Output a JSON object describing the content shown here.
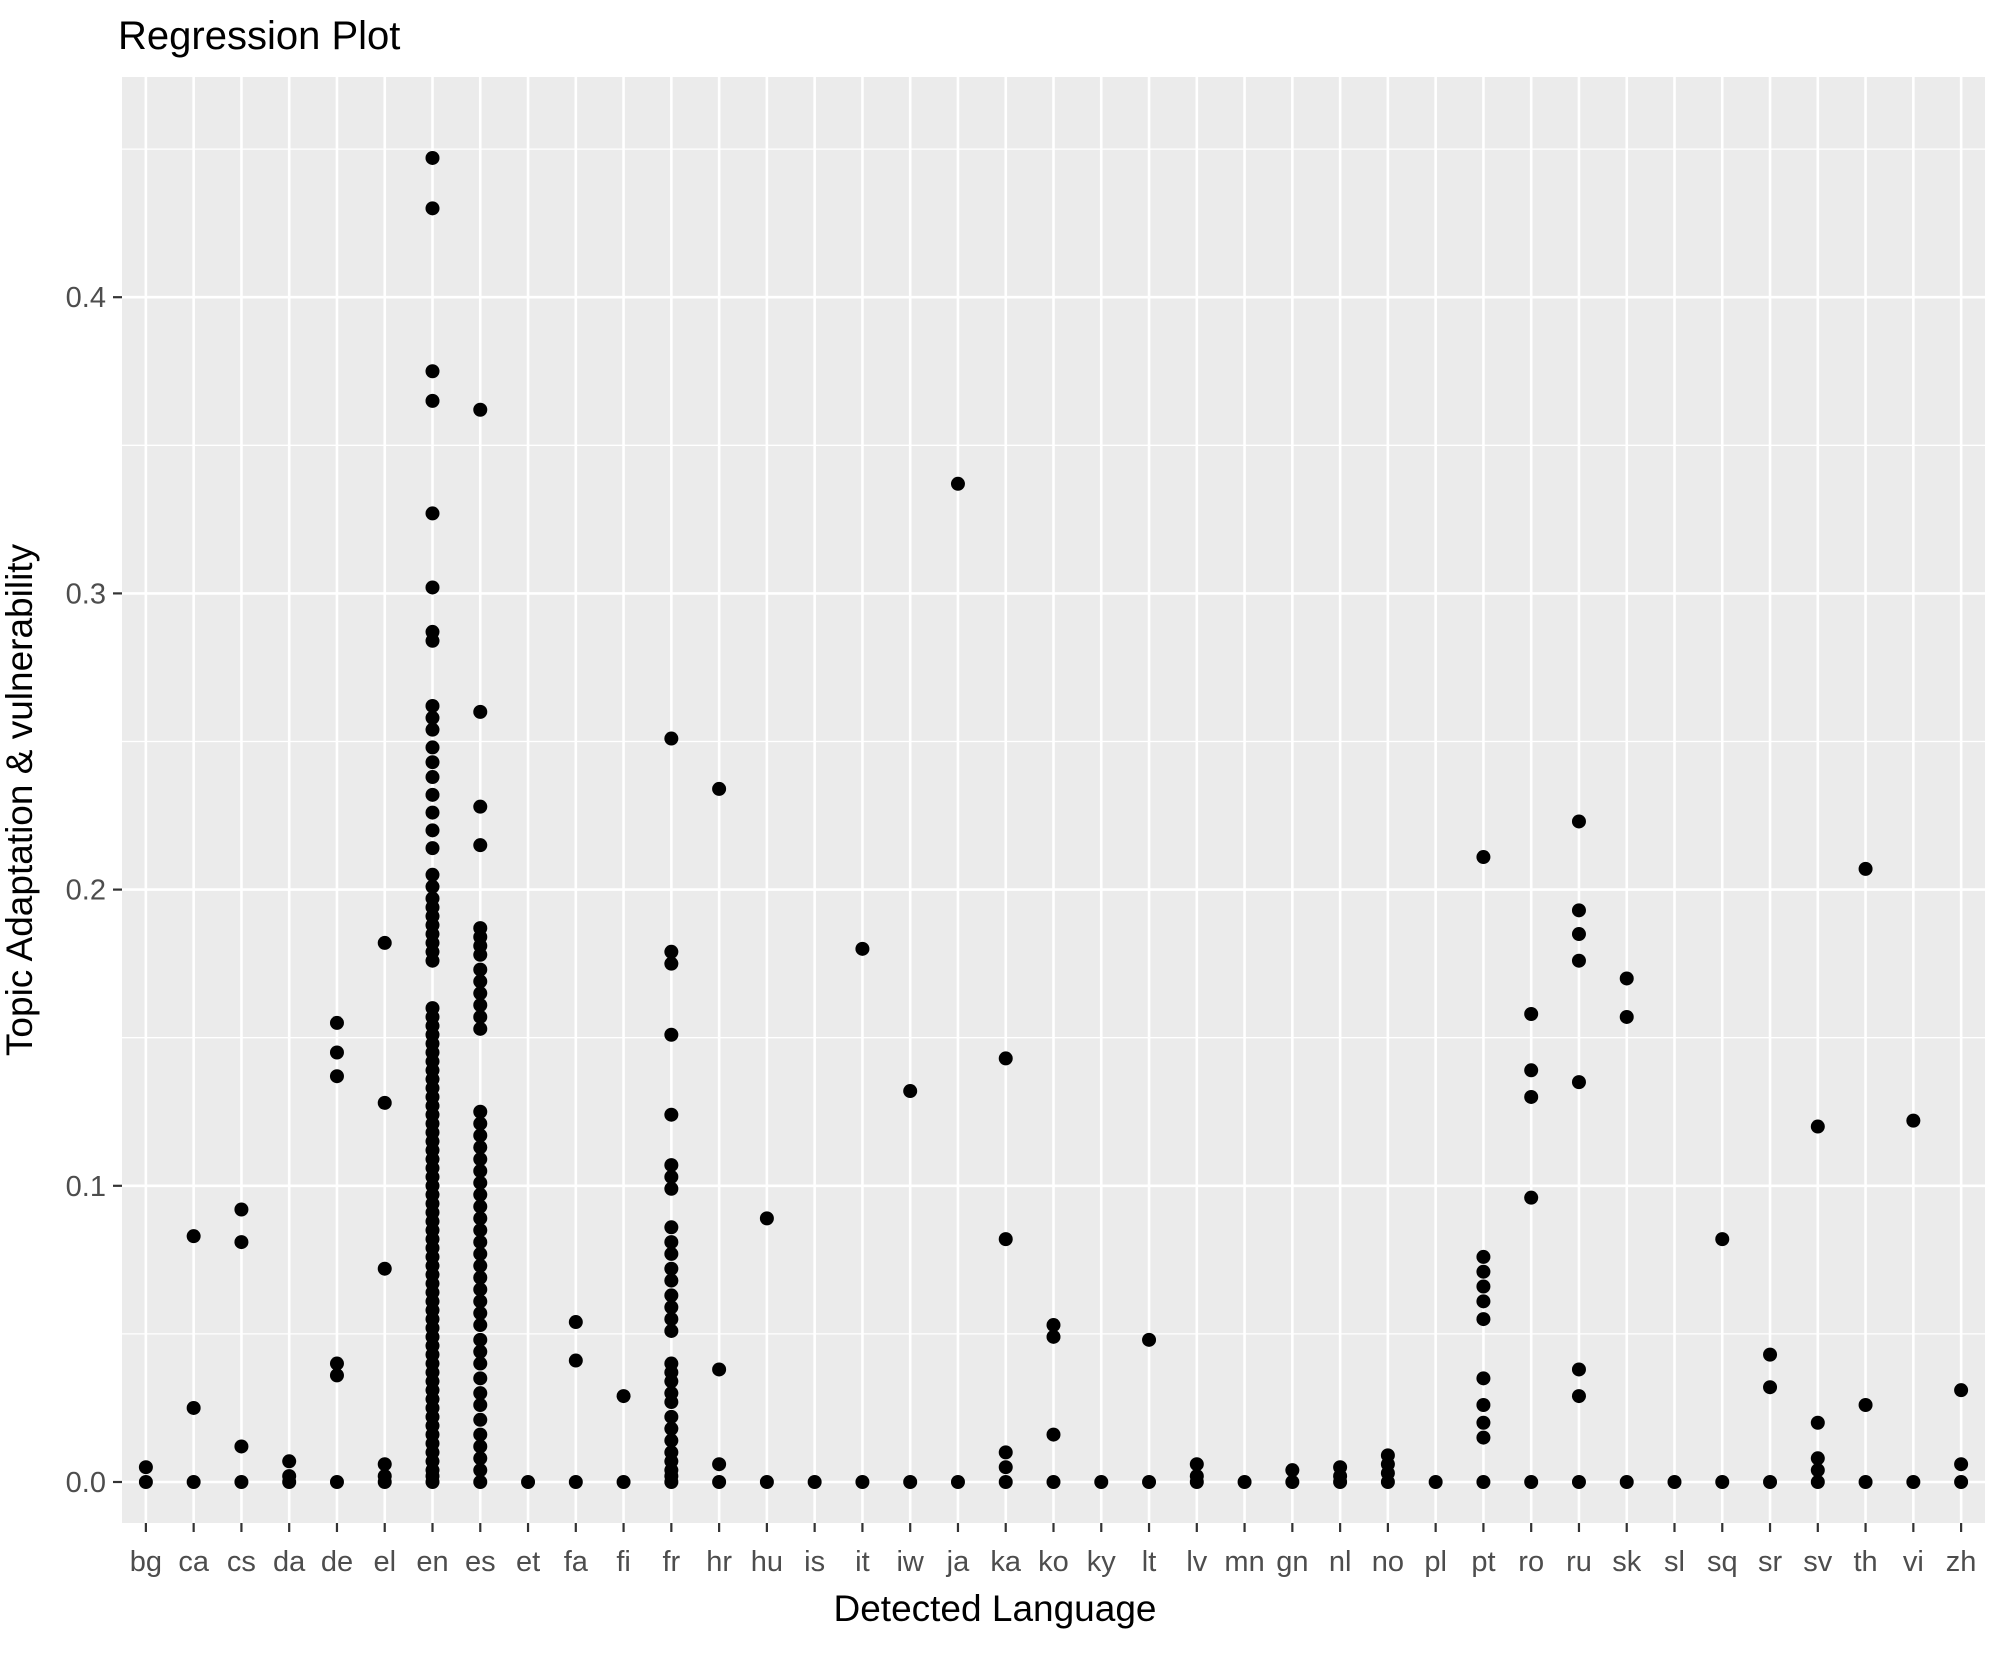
{
  "title": "Regression Plot",
  "chart_data": {
    "type": "scatter",
    "title": "Regression Plot",
    "xlabel": "Detected Language",
    "ylabel": "Topic Adaptation & vulnerability",
    "ylim": [
      -0.014,
      0.474
    ],
    "yticks": [
      0.0,
      0.1,
      0.2,
      0.3,
      0.4
    ],
    "ytick_labels": [
      "0.0",
      "0.1",
      "0.2",
      "0.3",
      "0.4"
    ],
    "grid": "on",
    "legend": "none",
    "panel_background": "#EBEBEB",
    "gridline_color": "#FFFFFF",
    "point_color": "#000000",
    "tick_label_color": "#4d4d4d",
    "categories": [
      "bg",
      "ca",
      "cs",
      "da",
      "de",
      "el",
      "en",
      "es",
      "et",
      "fa",
      "fi",
      "fr",
      "hr",
      "hu",
      "is",
      "it",
      "iw",
      "ja",
      "ka",
      "ko",
      "ky",
      "lt",
      "lv",
      "mn",
      "gn",
      "nl",
      "no",
      "pl",
      "pt",
      "ro",
      "ru",
      "sk",
      "sl",
      "sq",
      "sr",
      "sv",
      "th",
      "vi",
      "zh"
    ],
    "points": {
      "bg": [
        0.005,
        0.0
      ],
      "ca": [
        0.083,
        0.025,
        0.0
      ],
      "cs": [
        0.092,
        0.081,
        0.012,
        0.0
      ],
      "da": [
        0.007,
        0.002,
        0.0
      ],
      "de": [
        0.155,
        0.145,
        0.137,
        0.04,
        0.036,
        0.0
      ],
      "el": [
        0.182,
        0.128,
        0.072,
        0.006,
        0.002,
        0.0
      ],
      "en": [
        0.447,
        0.43,
        0.375,
        0.365,
        0.327,
        0.302,
        0.287,
        0.284,
        0.262,
        0.258,
        0.254,
        0.248,
        0.243,
        0.238,
        0.232,
        0.226,
        0.22,
        0.214,
        0.205,
        0.201,
        0.197,
        0.194,
        0.191,
        0.188,
        0.185,
        0.182,
        0.179,
        0.176,
        0.16,
        0.157,
        0.154,
        0.151,
        0.148,
        0.145,
        0.142,
        0.139,
        0.136,
        0.133,
        0.13,
        0.127,
        0.124,
        0.121,
        0.118,
        0.115,
        0.112,
        0.109,
        0.106,
        0.103,
        0.1,
        0.097,
        0.094,
        0.091,
        0.088,
        0.085,
        0.082,
        0.079,
        0.076,
        0.073,
        0.07,
        0.067,
        0.064,
        0.061,
        0.058,
        0.055,
        0.052,
        0.049,
        0.046,
        0.043,
        0.04,
        0.037,
        0.034,
        0.031,
        0.028,
        0.025,
        0.022,
        0.019,
        0.016,
        0.013,
        0.01,
        0.007,
        0.004,
        0.002,
        0.0
      ],
      "es": [
        0.362,
        0.26,
        0.228,
        0.215,
        0.187,
        0.184,
        0.181,
        0.178,
        0.173,
        0.169,
        0.165,
        0.161,
        0.157,
        0.153,
        0.125,
        0.121,
        0.117,
        0.113,
        0.109,
        0.105,
        0.101,
        0.097,
        0.093,
        0.089,
        0.085,
        0.081,
        0.077,
        0.073,
        0.069,
        0.065,
        0.061,
        0.057,
        0.053,
        0.048,
        0.044,
        0.04,
        0.035,
        0.03,
        0.026,
        0.021,
        0.016,
        0.012,
        0.008,
        0.004,
        0.0
      ],
      "et": [
        0.0
      ],
      "fa": [
        0.054,
        0.041,
        0.0
      ],
      "fi": [
        0.029,
        0.0
      ],
      "fr": [
        0.251,
        0.179,
        0.175,
        0.151,
        0.124,
        0.107,
        0.103,
        0.099,
        0.086,
        0.081,
        0.077,
        0.072,
        0.068,
        0.063,
        0.059,
        0.055,
        0.051,
        0.04,
        0.037,
        0.034,
        0.03,
        0.027,
        0.022,
        0.018,
        0.014,
        0.01,
        0.007,
        0.004,
        0.002,
        0.0
      ],
      "hr": [
        0.234,
        0.038,
        0.006,
        0.0
      ],
      "hu": [
        0.089,
        0.0
      ],
      "is": [
        0.0
      ],
      "it": [
        0.18,
        0.0
      ],
      "iw": [
        0.132,
        0.0
      ],
      "ja": [
        0.337,
        0.0
      ],
      "ka": [
        0.143,
        0.082,
        0.01,
        0.005,
        0.0
      ],
      "ko": [
        0.053,
        0.049,
        0.016,
        0.0
      ],
      "ky": [
        0.0
      ],
      "lt": [
        0.048,
        0.0
      ],
      "lv": [
        0.006,
        0.002,
        0.0
      ],
      "mn": [
        0.0
      ],
      "gn": [
        0.004,
        0.0
      ],
      "nl": [
        0.005,
        0.002,
        0.0
      ],
      "no": [
        0.009,
        0.006,
        0.003,
        0.0
      ],
      "pl": [
        0.0
      ],
      "pt": [
        0.211,
        0.076,
        0.071,
        0.066,
        0.061,
        0.055,
        0.035,
        0.026,
        0.02,
        0.015,
        0.0
      ],
      "ro": [
        0.158,
        0.139,
        0.13,
        0.096,
        0.0
      ],
      "ru": [
        0.223,
        0.193,
        0.185,
        0.176,
        0.135,
        0.038,
        0.029,
        0.0
      ],
      "sk": [
        0.17,
        0.157,
        0.0
      ],
      "sl": [
        0.0
      ],
      "sq": [
        0.082,
        0.0
      ],
      "sr": [
        0.043,
        0.032,
        0.0
      ],
      "sv": [
        0.12,
        0.02,
        0.008,
        0.004,
        0.0
      ],
      "th": [
        0.207,
        0.026,
        0.0
      ],
      "vi": [
        0.122,
        0.0
      ],
      "zh": [
        0.031,
        0.006,
        0.0
      ]
    }
  }
}
